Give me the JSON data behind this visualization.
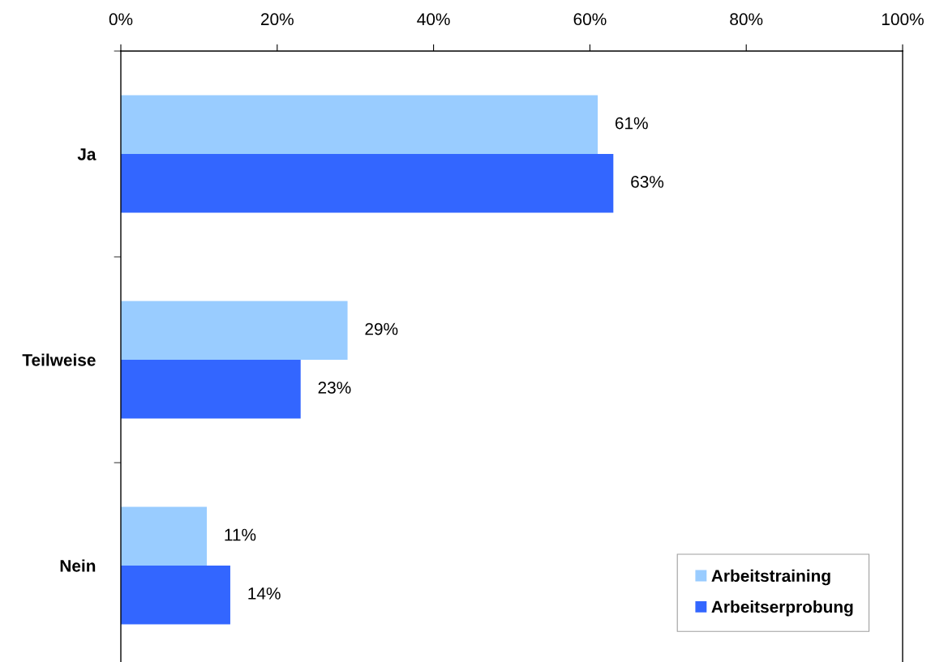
{
  "chart_data": {
    "type": "bar",
    "orientation": "horizontal",
    "categories": [
      "Ja",
      "Teilweise",
      "Nein"
    ],
    "series": [
      {
        "name": "Arbeitstraining",
        "color": "#99ccff",
        "values": [
          61,
          29,
          11
        ],
        "value_labels": [
          "61%",
          "29%",
          "11%"
        ]
      },
      {
        "name": "Arbeitserprobung",
        "color": "#3366ff",
        "values": [
          63,
          23,
          14
        ],
        "value_labels": [
          "63%",
          "23%",
          "14%"
        ]
      }
    ],
    "xlim": [
      0,
      100
    ],
    "xticks": [
      {
        "value": 0,
        "label": "0%"
      },
      {
        "value": 20,
        "label": "20%"
      },
      {
        "value": 40,
        "label": "40%"
      },
      {
        "value": 60,
        "label": "60%"
      },
      {
        "value": 80,
        "label": "80%"
      },
      {
        "value": 100,
        "label": "100%"
      }
    ],
    "grid": false,
    "legend": "bottom right"
  }
}
